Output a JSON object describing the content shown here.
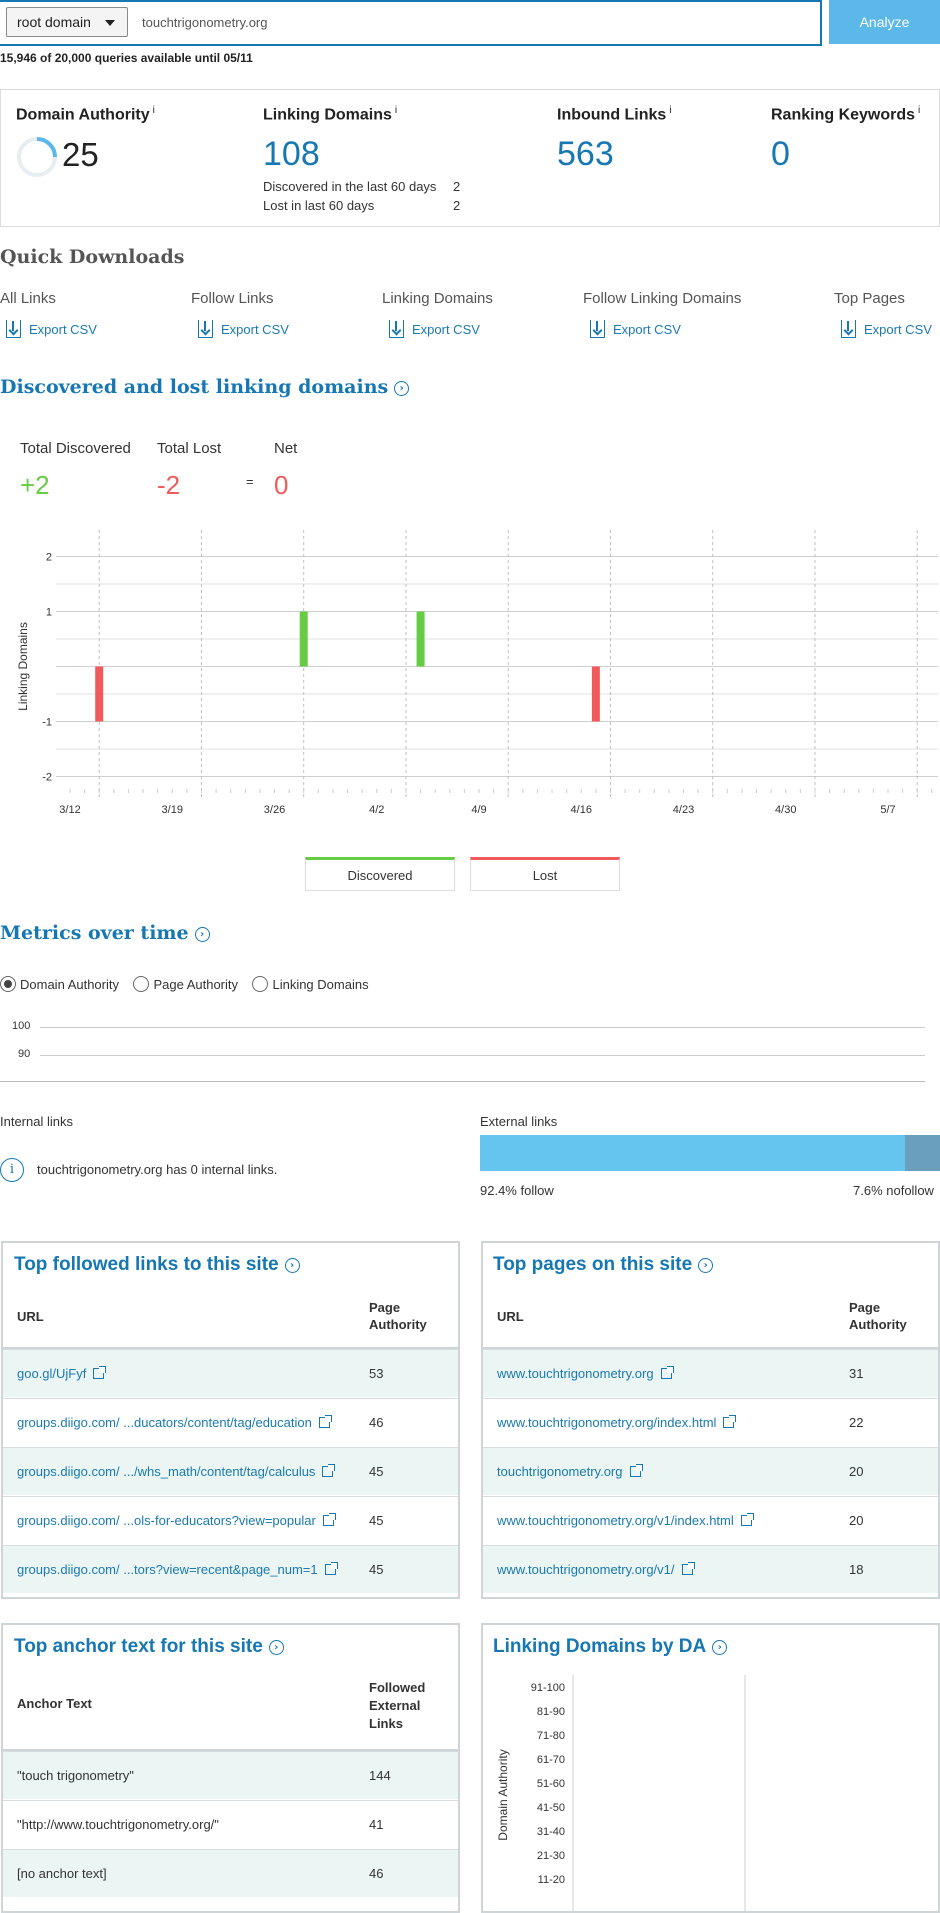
{
  "search": {
    "scope": "root domain",
    "query": "touchtrigonometry.org",
    "analyze_label": "Analyze",
    "quota": "15,946 of 20,000 queries available until 05/11"
  },
  "metrics": {
    "domain_authority": {
      "label": "Domain Authority",
      "value": "25",
      "fraction": 0.25
    },
    "linking_domains": {
      "label": "Linking Domains",
      "value": "108",
      "discovered_label": "Discovered in the last 60 days",
      "discovered_value": "2",
      "lost_label": "Lost in last 60 days",
      "lost_value": "2"
    },
    "inbound_links": {
      "label": "Inbound Links",
      "value": "563"
    },
    "ranking_keywords": {
      "label": "Ranking Keywords",
      "value": "0"
    },
    "info_marker": "i"
  },
  "quick_downloads": {
    "title": "Quick Downloads",
    "items": [
      {
        "label": "All Links",
        "link": "Export CSV"
      },
      {
        "label": "Follow Links",
        "link": "Export CSV"
      },
      {
        "label": "Linking Domains",
        "link": "Export CSV"
      },
      {
        "label": "Follow Linking Domains",
        "link": "Export CSV"
      },
      {
        "label": "Top Pages",
        "link": "Export CSV"
      }
    ]
  },
  "discovered_lost": {
    "title": "Discovered and lost linking domains",
    "total_discovered_label": "Total Discovered",
    "total_discovered_value": "+2",
    "total_lost_label": "Total Lost",
    "total_lost_value": "-2",
    "equals": "=",
    "net_label": "Net",
    "net_value": "0",
    "legend": {
      "discovered": "Discovered",
      "lost": "Lost"
    }
  },
  "chart_data": {
    "type": "bar",
    "ylabel": "Linking Domains",
    "ylim": [
      -2.3,
      2.3
    ],
    "yticks": [
      "2",
      "1",
      "",
      "-1",
      "-2"
    ],
    "x_ticks": [
      "3/12",
      "3/19",
      "3/26",
      "4/2",
      "4/9",
      "4/16",
      "4/23",
      "4/30",
      "5/7"
    ],
    "series": [
      {
        "name": "Discovered",
        "color": "#66cc44",
        "points": [
          {
            "x": "3/28",
            "y": 1
          },
          {
            "x": "4/5",
            "y": 1
          }
        ]
      },
      {
        "name": "Lost",
        "color": "#f05a5a",
        "points": [
          {
            "x": "3/14",
            "y": -1
          },
          {
            "x": "4/17",
            "y": -1
          }
        ]
      }
    ]
  },
  "metrics_over_time": {
    "title": "Metrics over time",
    "options": [
      "Domain Authority",
      "Page Authority",
      "Linking Domains"
    ],
    "selected": "Domain Authority",
    "y_ticks": [
      "100",
      "90"
    ]
  },
  "follow_nofollow": {
    "internal_title": "Internal links",
    "internal_message": "touchtrigonometry.org has 0 internal links.",
    "external_title": "External links",
    "follow_fraction": 0.924,
    "follow_label": "92.4% follow",
    "nofollow_label": "7.6% nofollow"
  },
  "top_followed_links": {
    "title": "Top followed links to this site",
    "col_url": "URL",
    "col_pa_line1": "Page",
    "col_pa_line2": "Authority",
    "rows": [
      {
        "url": "goo.gl/UjFyf",
        "pa": "53"
      },
      {
        "url": "groups.diigo.com/ ...ducators/content/tag/education",
        "pa": "46"
      },
      {
        "url": "groups.diigo.com/ .../whs_math/content/tag/calculus",
        "pa": "45"
      },
      {
        "url": "groups.diigo.com/ ...ols-for-educators?view=popular",
        "pa": "45"
      },
      {
        "url": "groups.diigo.com/ ...tors?view=recent&page_num=1",
        "pa": "45"
      }
    ]
  },
  "top_pages": {
    "title": "Top pages on this site",
    "col_url": "URL",
    "col_pa_line1": "Page",
    "col_pa_line2": "Authority",
    "rows": [
      {
        "url": "www.touchtrigonometry.org",
        "pa": "31"
      },
      {
        "url": "www.touchtrigonometry.org/index.html",
        "pa": "22"
      },
      {
        "url": "touchtrigonometry.org",
        "pa": "20"
      },
      {
        "url": "www.touchtrigonometry.org/v1/index.html",
        "pa": "20"
      },
      {
        "url": "www.touchtrigonometry.org/v1/",
        "pa": "18"
      }
    ]
  },
  "top_anchor_text": {
    "title": "Top anchor text for this site",
    "col_anchor": "Anchor Text",
    "col_fel_line1": "Followed",
    "col_fel_line2": "External",
    "col_fel_line3": "Links",
    "rows": [
      {
        "text": "\"touch trigonometry\"",
        "count": "144"
      },
      {
        "text": "\"http://www.touchtrigonometry.org/\"",
        "count": "41"
      },
      {
        "text": "[no anchor text]",
        "count": "46"
      }
    ]
  },
  "linking_domains_by_da": {
    "title": "Linking Domains by DA",
    "ylabel": "Domain Authority",
    "buckets": [
      "91-100",
      "81-90",
      "71-80",
      "61-70",
      "51-60",
      "41-50",
      "31-40",
      "21-30",
      "11-20"
    ]
  }
}
